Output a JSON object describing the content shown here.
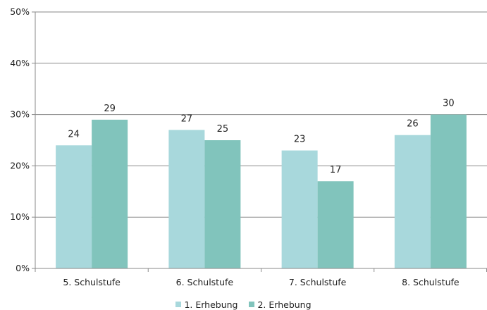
{
  "chart_data": {
    "type": "bar",
    "categories": [
      "5. Schulstufe",
      "6. Schulstufe",
      "7. Schulstufe",
      "8. Schulstufe"
    ],
    "series": [
      {
        "name": "1. Erhebung",
        "values": [
          24,
          27,
          23,
          26
        ],
        "labels": [
          "24",
          "27",
          "23",
          "26"
        ],
        "color": "#a8d8dc"
      },
      {
        "name": "2. Erhebung",
        "values": [
          29,
          25,
          17,
          30
        ],
        "labels": [
          "29",
          "25",
          "17",
          "30"
        ],
        "color": "#81c4bc"
      }
    ],
    "ylim": [
      0,
      50
    ],
    "yticks": [
      0,
      10,
      20,
      30,
      40,
      50
    ],
    "ytick_labels": [
      "0%",
      "10%",
      "20%",
      "30%",
      "40%",
      "50%"
    ],
    "grid": true,
    "legend_position": "bottom"
  }
}
